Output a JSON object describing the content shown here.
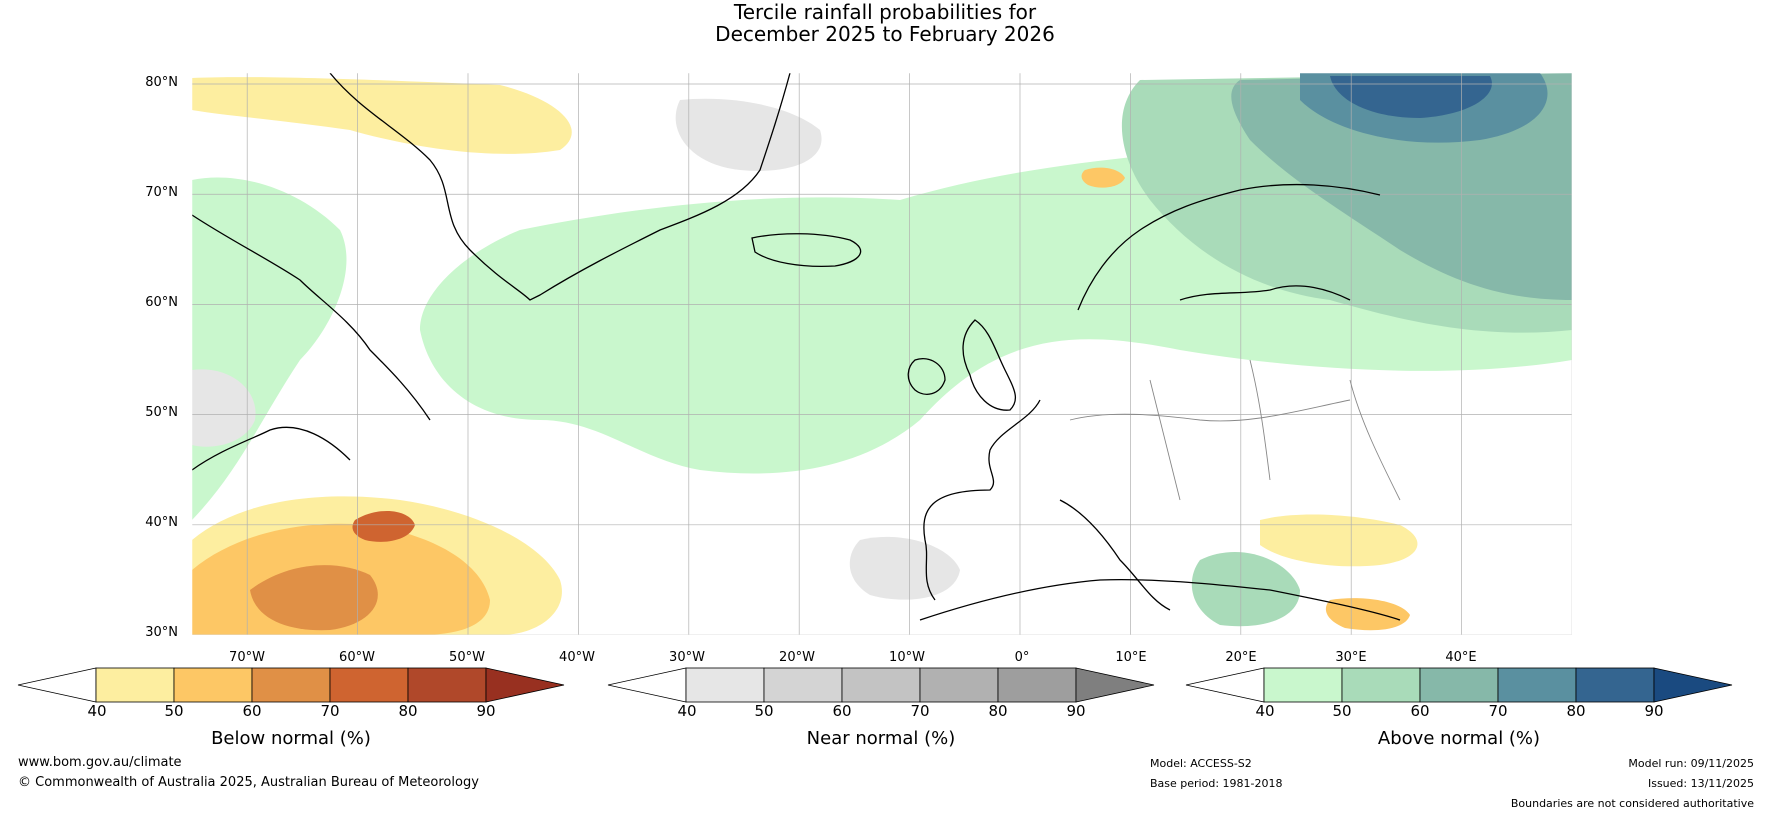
{
  "title": {
    "line1": "Tercile rainfall probabilities for",
    "line2": "December 2025 to February 2026"
  },
  "map": {
    "lat_labels": [
      "80°N",
      "70°N",
      "60°N",
      "50°N",
      "40°N",
      "30°N"
    ],
    "lon_labels": [
      "70°W",
      "60°W",
      "50°W",
      "40°W",
      "30°W",
      "20°W",
      "10°W",
      "0°",
      "10°E",
      "20°E",
      "30°E",
      "40°E"
    ],
    "lat_range": [
      30,
      81
    ],
    "lon_range": [
      -75,
      50
    ],
    "colors": {
      "land_outline": "#000000",
      "borders": "#888888",
      "gridlines": "#b0b0b0"
    }
  },
  "colorbars": [
    {
      "label": "Below normal (%)",
      "ticks": [
        "40",
        "50",
        "60",
        "70",
        "80",
        "90"
      ],
      "colors": [
        "#ffffff",
        "#fdeea0",
        "#fdc765",
        "#e09046",
        "#cf6430",
        "#b0482a",
        "#983020"
      ]
    },
    {
      "label": "Near normal (%)",
      "ticks": [
        "40",
        "50",
        "60",
        "70",
        "80",
        "90"
      ],
      "colors": [
        "#ffffff",
        "#e6e6e6",
        "#d4d4d4",
        "#c3c3c3",
        "#b1b1b1",
        "#9e9e9e",
        "#7f7f7f"
      ]
    },
    {
      "label": "Above normal (%)",
      "ticks": [
        "40",
        "50",
        "60",
        "70",
        "80",
        "90"
      ],
      "colors": [
        "#ffffff",
        "#c9f7cd",
        "#a9dbb9",
        "#86b8a9",
        "#5a90a0",
        "#346590",
        "#1a4a80"
      ]
    }
  ],
  "footer": {
    "website": "www.bom.gov.au/climate",
    "copyright": "© Commonwealth of Australia 2025, Australian Bureau of Meteorology",
    "model": "Model: ACCESS-S2",
    "base_period": "Base period: 1981-2018",
    "model_run": "Model run: 09/11/2025",
    "issued": "Issued: 13/11/2025",
    "disclaimer": "Boundaries are not considered authoritative"
  }
}
